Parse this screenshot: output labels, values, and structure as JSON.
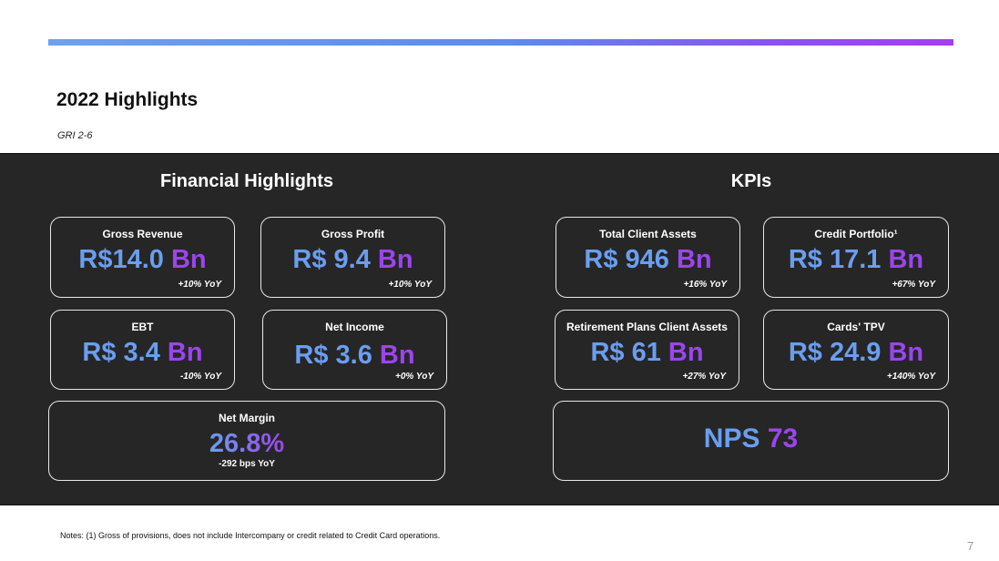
{
  "header": {
    "title": "2022 Highlights",
    "gri": "GRI 2-6"
  },
  "financial": {
    "title": "Financial Highlights",
    "cards": [
      {
        "label": "Gross Revenue",
        "value_num": "R$14.0",
        "value_unit": "Bn",
        "yoy": "+10% YoY"
      },
      {
        "label": "Gross Profit",
        "value_num": "R$ 9.4",
        "value_unit": "Bn",
        "yoy": "+10% YoY"
      },
      {
        "label": "EBT",
        "value_num": "R$ 3.4",
        "value_unit": "Bn",
        "yoy": "-10% YoY"
      },
      {
        "label": "Net Income",
        "value_num": "R$ 3.6",
        "value_unit": "Bn",
        "yoy": "+0% YoY"
      }
    ],
    "margin": {
      "label": "Net Margin",
      "value": "26.8%",
      "sub": "-292 bps YoY"
    }
  },
  "kpis": {
    "title": "KPIs",
    "cards": [
      {
        "label": "Total Client Assets",
        "value_num": "R$ 946",
        "value_unit": "Bn",
        "yoy": "+16% YoY"
      },
      {
        "label": "Credit Portfolio¹",
        "value_num": "R$ 17.1",
        "value_unit": "Bn",
        "yoy": "+67% YoY"
      },
      {
        "label": "Retirement Plans Client Assets",
        "value_num": "R$ 61",
        "value_unit": "Bn",
        "yoy": "+27% YoY"
      },
      {
        "label": "Cards' TPV",
        "value_num": "R$ 24.9",
        "value_unit": "Bn",
        "yoy": "+140% YoY"
      }
    ],
    "nps": {
      "label": "NPS",
      "value": "73"
    }
  },
  "footer": {
    "notes": "Notes: (1) Gross of provisions, does not include Intercompany or credit related to Credit Card operations.",
    "page": "7"
  },
  "colors": {
    "panel_bg": "#262626",
    "value_blue": "#6a9ef0",
    "value_purple": "#9b45ee"
  }
}
